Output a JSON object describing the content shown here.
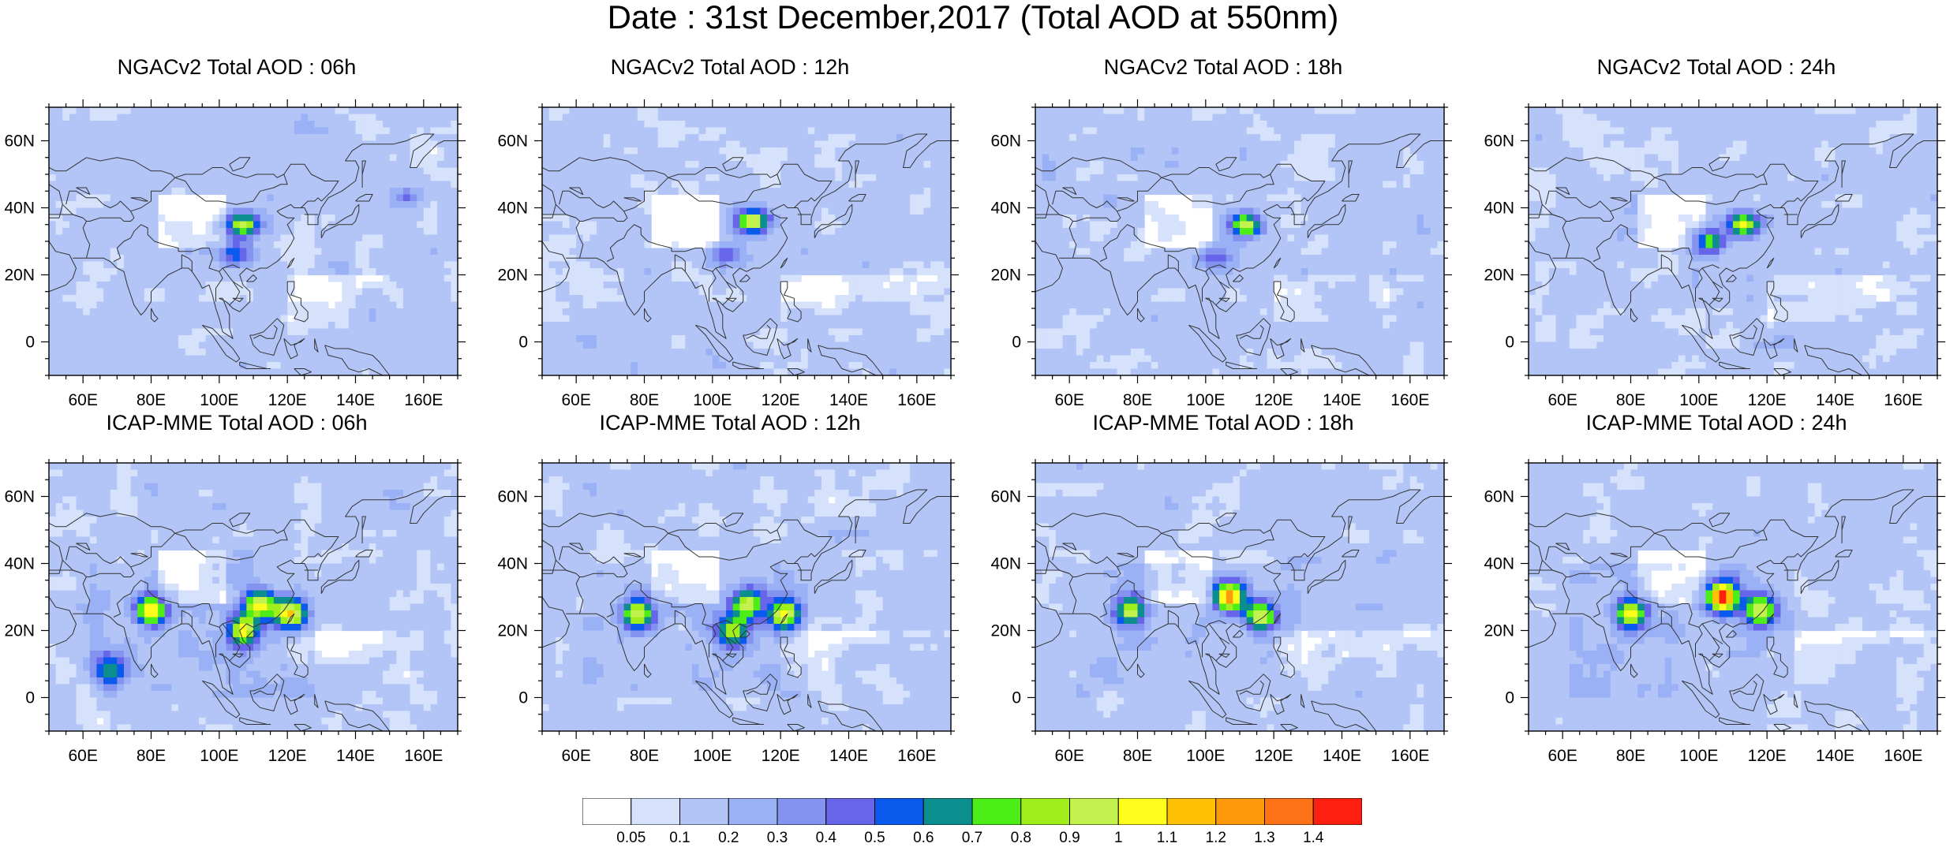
{
  "title": "Date : 31st December,2017 (Total AOD at 550nm)",
  "chart_data": [
    {
      "type": "heatmap",
      "title": "NGACv2 Total AOD : 06h",
      "model": "NGACv2",
      "forecast_hour": "06h",
      "xlim": [
        50,
        170
      ],
      "ylim": [
        -10,
        70
      ],
      "xunit": "degrees E",
      "yunit": "degrees N",
      "hotspots": [
        {
          "lon": 107,
          "lat": 35,
          "aod": 0.95
        },
        {
          "lon": 105,
          "lat": 26,
          "aod": 0.55
        },
        {
          "lon": 155,
          "lat": 43,
          "aod": 0.45
        }
      ]
    },
    {
      "type": "heatmap",
      "title": "NGACv2 Total AOD : 12h",
      "model": "NGACv2",
      "forecast_hour": "12h",
      "xlim": [
        50,
        170
      ],
      "ylim": [
        -10,
        70
      ],
      "xunit": "degrees E",
      "yunit": "degrees N",
      "hotspots": [
        {
          "lon": 112,
          "lat": 36,
          "aod": 1.0
        },
        {
          "lon": 103,
          "lat": 26,
          "aod": 0.5
        }
      ]
    },
    {
      "type": "heatmap",
      "title": "NGACv2 Total AOD : 18h",
      "model": "NGACv2",
      "forecast_hour": "18h",
      "xlim": [
        50,
        170
      ],
      "ylim": [
        -10,
        70
      ],
      "xunit": "degrees E",
      "yunit": "degrees N",
      "hotspots": [
        {
          "lon": 112,
          "lat": 35,
          "aod": 1.0
        },
        {
          "lon": 103,
          "lat": 25,
          "aod": 0.5
        }
      ]
    },
    {
      "type": "heatmap",
      "title": "NGACv2 Total AOD : 24h",
      "model": "NGACv2",
      "forecast_hour": "24h",
      "xlim": [
        50,
        170
      ],
      "ylim": [
        -10,
        70
      ],
      "xunit": "degrees E",
      "yunit": "degrees N",
      "hotspots": [
        {
          "lon": 113,
          "lat": 35,
          "aod": 1.0
        },
        {
          "lon": 103,
          "lat": 30,
          "aod": 0.8
        }
      ]
    },
    {
      "type": "heatmap",
      "title": "ICAP-MME Total AOD : 06h",
      "model": "ICAP-MME",
      "forecast_hour": "06h",
      "xlim": [
        50,
        170
      ],
      "ylim": [
        -10,
        70
      ],
      "xunit": "degrees E",
      "yunit": "degrees N",
      "hotspots": [
        {
          "lon": 80,
          "lat": 26,
          "aod": 1.05
        },
        {
          "lon": 112,
          "lat": 28,
          "aod": 1.0
        },
        {
          "lon": 121,
          "lat": 25,
          "aod": 1.1
        },
        {
          "lon": 107,
          "lat": 20,
          "aod": 1.0
        },
        {
          "lon": 68,
          "lat": 8,
          "aod": 0.7
        }
      ]
    },
    {
      "type": "heatmap",
      "title": "ICAP-MME Total AOD : 12h",
      "model": "ICAP-MME",
      "forecast_hour": "12h",
      "xlim": [
        50,
        170
      ],
      "ylim": [
        -10,
        70
      ],
      "xunit": "degrees E",
      "yunit": "degrees N",
      "hotspots": [
        {
          "lon": 78,
          "lat": 25,
          "aod": 0.95
        },
        {
          "lon": 110,
          "lat": 28,
          "aod": 1.05
        },
        {
          "lon": 121,
          "lat": 25,
          "aod": 1.0
        },
        {
          "lon": 106,
          "lat": 20,
          "aod": 0.9
        }
      ]
    },
    {
      "type": "heatmap",
      "title": "ICAP-MME Total AOD : 18h",
      "model": "ICAP-MME",
      "forecast_hour": "18h",
      "xlim": [
        50,
        170
      ],
      "ylim": [
        -10,
        70
      ],
      "xunit": "degrees E",
      "yunit": "degrees N",
      "hotspots": [
        {
          "lon": 78,
          "lat": 26,
          "aod": 1.0
        },
        {
          "lon": 107,
          "lat": 30,
          "aod": 1.3
        },
        {
          "lon": 116,
          "lat": 24,
          "aod": 1.0
        }
      ]
    },
    {
      "type": "heatmap",
      "title": "ICAP-MME Total AOD : 24h",
      "model": "ICAP-MME",
      "forecast_hour": "24h",
      "xlim": [
        50,
        170
      ],
      "ylim": [
        -10,
        70
      ],
      "xunit": "degrees E",
      "yunit": "degrees N",
      "hotspots": [
        {
          "lon": 80,
          "lat": 25,
          "aod": 1.0
        },
        {
          "lon": 107,
          "lat": 30,
          "aod": 1.4
        },
        {
          "lon": 118,
          "lat": 26,
          "aod": 1.05
        }
      ]
    }
  ],
  "axis": {
    "x_ticks": [
      60,
      80,
      100,
      120,
      140,
      160
    ],
    "x_tick_labels": [
      "60E",
      "80E",
      "100E",
      "120E",
      "140E",
      "160E"
    ],
    "y_ticks": [
      0,
      20,
      40,
      60
    ],
    "y_tick_labels": [
      "0",
      "20N",
      "40N",
      "60N"
    ]
  },
  "colorbar": {
    "levels": [
      "0.05",
      "0.1",
      "0.2",
      "0.3",
      "0.4",
      "0.5",
      "0.6",
      "0.7",
      "0.8",
      "0.9",
      "1",
      "1.1",
      "1.2",
      "1.3",
      "1.4"
    ],
    "level_values": [
      0.05,
      0.1,
      0.2,
      0.3,
      0.4,
      0.5,
      0.6,
      0.7,
      0.8,
      0.9,
      1.0,
      1.1,
      1.2,
      1.3,
      1.4
    ],
    "colors": [
      "#ffffff",
      "#d6e1fb",
      "#b3c5f7",
      "#9ab1f5",
      "#8493f0",
      "#6766ea",
      "#0a5aee",
      "#0d8e8e",
      "#4ded17",
      "#a0ee1b",
      "#c3f14e",
      "#fefe1c",
      "#fec104",
      "#fe9a0a",
      "#fd7117",
      "#fe1f10"
    ]
  }
}
